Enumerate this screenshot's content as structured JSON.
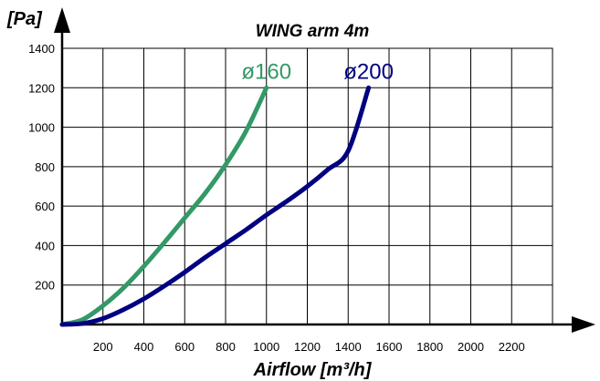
{
  "chart_data": {
    "type": "line",
    "title": "WING arm 4m",
    "xlabel": "Airflow [m³/h]",
    "ylabel": "[Pa]",
    "xlim": [
      0,
      2400
    ],
    "ylim": [
      0,
      1400
    ],
    "grid": true,
    "x_ticks": [
      200,
      400,
      600,
      800,
      1000,
      1200,
      1400,
      1600,
      1800,
      2000,
      2200
    ],
    "x_tick_labels": [
      "200",
      "400",
      "600",
      "800",
      "1000",
      "1200",
      "1400",
      "1600",
      "1800",
      "2000",
      "2200"
    ],
    "y_ticks": [
      200,
      400,
      600,
      800,
      1000,
      1200,
      1400
    ],
    "y_tick_labels": [
      "200",
      "400",
      "600",
      "800",
      "1000",
      "1200",
      "1400"
    ],
    "series": [
      {
        "name": "ø160",
        "color": "#339966",
        "points": [
          [
            0,
            0
          ],
          [
            100,
            25
          ],
          [
            200,
            95
          ],
          [
            300,
            185
          ],
          [
            400,
            295
          ],
          [
            500,
            415
          ],
          [
            600,
            540
          ],
          [
            700,
            665
          ],
          [
            800,
            810
          ],
          [
            900,
            980
          ],
          [
            1000,
            1200
          ]
        ]
      },
      {
        "name": "ø200",
        "color": "#000080",
        "points": [
          [
            0,
            0
          ],
          [
            100,
            5
          ],
          [
            200,
            30
          ],
          [
            300,
            75
          ],
          [
            400,
            130
          ],
          [
            500,
            195
          ],
          [
            600,
            265
          ],
          [
            700,
            340
          ],
          [
            800,
            410
          ],
          [
            900,
            480
          ],
          [
            1000,
            555
          ],
          [
            1100,
            625
          ],
          [
            1200,
            700
          ],
          [
            1300,
            785
          ],
          [
            1400,
            880
          ],
          [
            1500,
            1200
          ]
        ]
      }
    ]
  }
}
